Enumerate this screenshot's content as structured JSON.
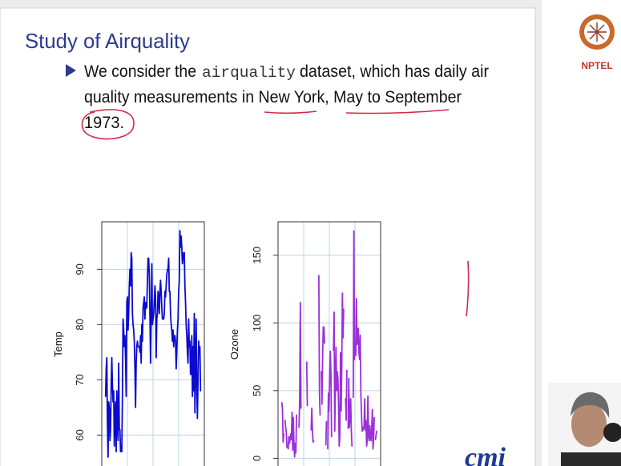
{
  "slide": {
    "title": "Study of Airquality",
    "bullet_lines": [
      "We consider the",
      "airquality",
      "dataset, which has daily air",
      "quality measurements in New York, May to September",
      "1973."
    ],
    "logo": "NPTEL"
  },
  "chart_data": [
    {
      "type": "line",
      "ylabel": "Temp",
      "color": "#0a0ad0",
      "grid": true,
      "ylim": [
        54.4,
        98.6
      ],
      "yticks": [
        60,
        70,
        80,
        90
      ],
      "values": [
        67,
        72,
        74,
        62,
        56,
        66,
        65,
        59,
        61,
        69,
        74,
        69,
        66,
        68,
        58,
        64,
        66,
        57,
        68,
        62,
        59,
        73,
        61,
        61,
        57,
        58,
        57,
        67,
        81,
        79,
        76,
        78,
        74,
        67,
        84,
        85,
        79,
        82,
        87,
        90,
        87,
        93,
        92,
        82,
        80,
        79,
        77,
        72,
        65,
        73,
        76,
        77,
        76,
        76,
        76,
        75,
        78,
        73,
        80,
        77,
        83,
        84,
        85,
        81,
        84,
        83,
        83,
        88,
        92,
        92,
        89,
        82,
        73,
        81,
        91,
        80,
        81,
        82,
        84,
        87,
        85,
        74,
        81,
        82,
        86,
        85,
        82,
        86,
        88,
        86,
        83,
        81,
        81,
        81,
        82,
        86,
        85,
        87,
        89,
        90,
        90,
        92,
        86,
        86,
        82,
        80,
        79,
        77,
        79,
        76,
        78,
        78,
        77,
        72,
        75,
        79,
        81,
        86,
        88,
        97,
        94,
        96,
        94,
        91,
        92,
        93,
        93,
        87,
        84,
        80,
        78,
        75,
        73,
        81,
        76,
        77,
        71,
        71,
        78,
        67,
        76,
        68,
        82,
        64,
        71,
        81,
        69,
        63,
        70,
        77,
        75,
        76,
        68
      ]
    },
    {
      "type": "line",
      "ylabel": "Ozone",
      "color": "#9b30d9",
      "grid": true,
      "ylim": [
        -5.7,
        174.7
      ],
      "yticks": [
        0,
        50,
        100,
        150
      ],
      "values": [
        41,
        36,
        12,
        18,
        null,
        28,
        23,
        19,
        8,
        null,
        7,
        16,
        11,
        14,
        18,
        14,
        34,
        6,
        30,
        11,
        1,
        11,
        4,
        32,
        null,
        null,
        null,
        23,
        45,
        115,
        37,
        null,
        null,
        null,
        null,
        null,
        null,
        29,
        null,
        71,
        39,
        null,
        null,
        23,
        null,
        null,
        21,
        37,
        20,
        12,
        13,
        null,
        null,
        null,
        null,
        null,
        null,
        null,
        135,
        49,
        32,
        null,
        64,
        40,
        77,
        97,
        97,
        85,
        null,
        10,
        27,
        null,
        7,
        48,
        35,
        61,
        79,
        63,
        16,
        null,
        null,
        80,
        108,
        20,
        52,
        82,
        50,
        64,
        59,
        39,
        9,
        16,
        78,
        35,
        66,
        122,
        89,
        110,
        null,
        null,
        44,
        28,
        65,
        null,
        22,
        59,
        23,
        31,
        44,
        21,
        9,
        null,
        45,
        168,
        73,
        null,
        76,
        118,
        84,
        85,
        96,
        78,
        73,
        91,
        47,
        32,
        20,
        23,
        21,
        24,
        44,
        21,
        28,
        9,
        13,
        46,
        18,
        13,
        24,
        16,
        13,
        23,
        36,
        7,
        14,
        30,
        null,
        14,
        18,
        20
      ]
    }
  ]
}
